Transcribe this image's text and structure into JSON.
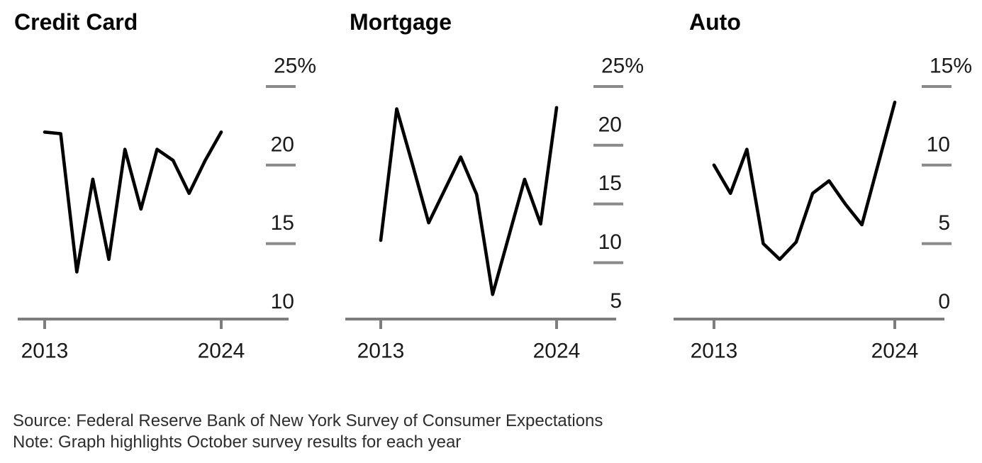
{
  "colors": {
    "background": "#ffffff",
    "line": "#000000",
    "axis": "#7d7d7d",
    "tick_dash": "#8a8a8a",
    "tick_text": "#1a1a1a",
    "title_text": "#050505",
    "footer_text": "#2e2e2e"
  },
  "footer": {
    "source": "Source: Federal Reserve Bank of New York Survey of Consumer Expectations",
    "note": "Note: Graph highlights October survey results for each year"
  },
  "chart_data": [
    {
      "type": "line",
      "title": "Credit Card",
      "x": [
        2013,
        2014,
        2015,
        2016,
        2017,
        2018,
        2019,
        2020,
        2021,
        2022,
        2023,
        2024
      ],
      "values": [
        22.1,
        22.0,
        13.2,
        19.1,
        14.0,
        21.0,
        17.2,
        21.0,
        20.3,
        18.2,
        20.3,
        22.1
      ],
      "y_unit": "%",
      "y_ticks": [
        25,
        20,
        15,
        10
      ],
      "ylim": [
        10.2,
        25
      ],
      "x_tick_labels": [
        "2013",
        "2024"
      ],
      "grid": false,
      "legend": "none",
      "line_color": "#000000"
    },
    {
      "type": "line",
      "title": "Mortgage",
      "x": [
        2013,
        2014,
        2015,
        2016,
        2017,
        2018,
        2019,
        2020,
        2021,
        2022,
        2023,
        2024
      ],
      "values": [
        11.9,
        23.1,
        18.3,
        13.4,
        16.2,
        19.0,
        15.8,
        7.3,
        12.2,
        17.1,
        13.3,
        23.2
      ],
      "y_unit": "%",
      "y_ticks": [
        25,
        20,
        15,
        10,
        5
      ],
      "ylim": [
        5.2,
        25
      ],
      "x_tick_labels": [
        "2013",
        "2024"
      ],
      "grid": false,
      "legend": "none",
      "line_color": "#000000"
    },
    {
      "type": "line",
      "title": "Auto",
      "x": [
        2013,
        2014,
        2015,
        2016,
        2017,
        2018,
        2019,
        2020,
        2021,
        2022,
        2023,
        2024
      ],
      "values": [
        10.0,
        8.2,
        11.0,
        5.0,
        4.0,
        5.1,
        8.2,
        9.0,
        7.5,
        6.2,
        10.1,
        14.0
      ],
      "y_unit": "%",
      "y_ticks": [
        15,
        10,
        5,
        0
      ],
      "ylim": [
        0.2,
        15
      ],
      "x_tick_labels": [
        "2013",
        "2024"
      ],
      "grid": false,
      "legend": "none",
      "line_color": "#000000"
    }
  ]
}
